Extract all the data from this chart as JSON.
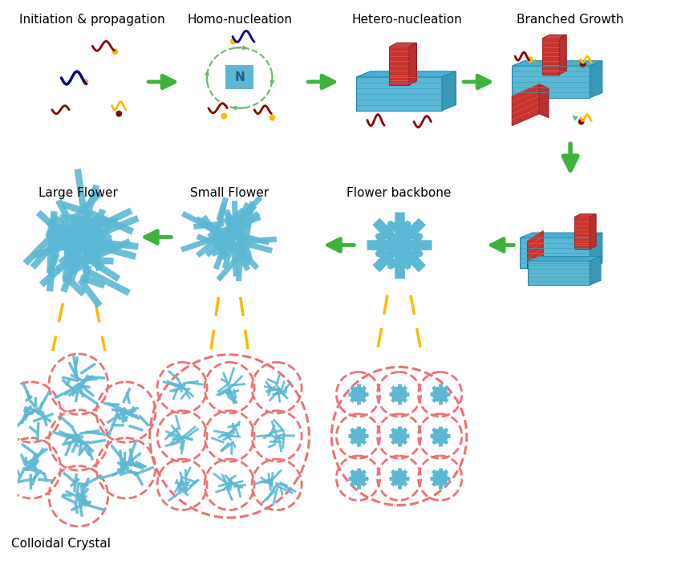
{
  "background_color": "#ffffff",
  "green": "#3CB43C",
  "yellow": "#FFB800",
  "blue": "#5BB8D4",
  "red": "#C8342C",
  "pink": "#F07070",
  "darkred": "#8B0000",
  "darkblue": "#00008B",
  "labels": {
    "initiation": "Initiation & propagation",
    "homo": "Homo-nucleation",
    "hetero": "Hetero-nucleation",
    "branched": "Branched Growth",
    "large_flower": "Large Flower",
    "small_flower": "Small Flower",
    "flower_backbone": "Flower backbone",
    "colloidal": "Colloidal Crystal"
  }
}
